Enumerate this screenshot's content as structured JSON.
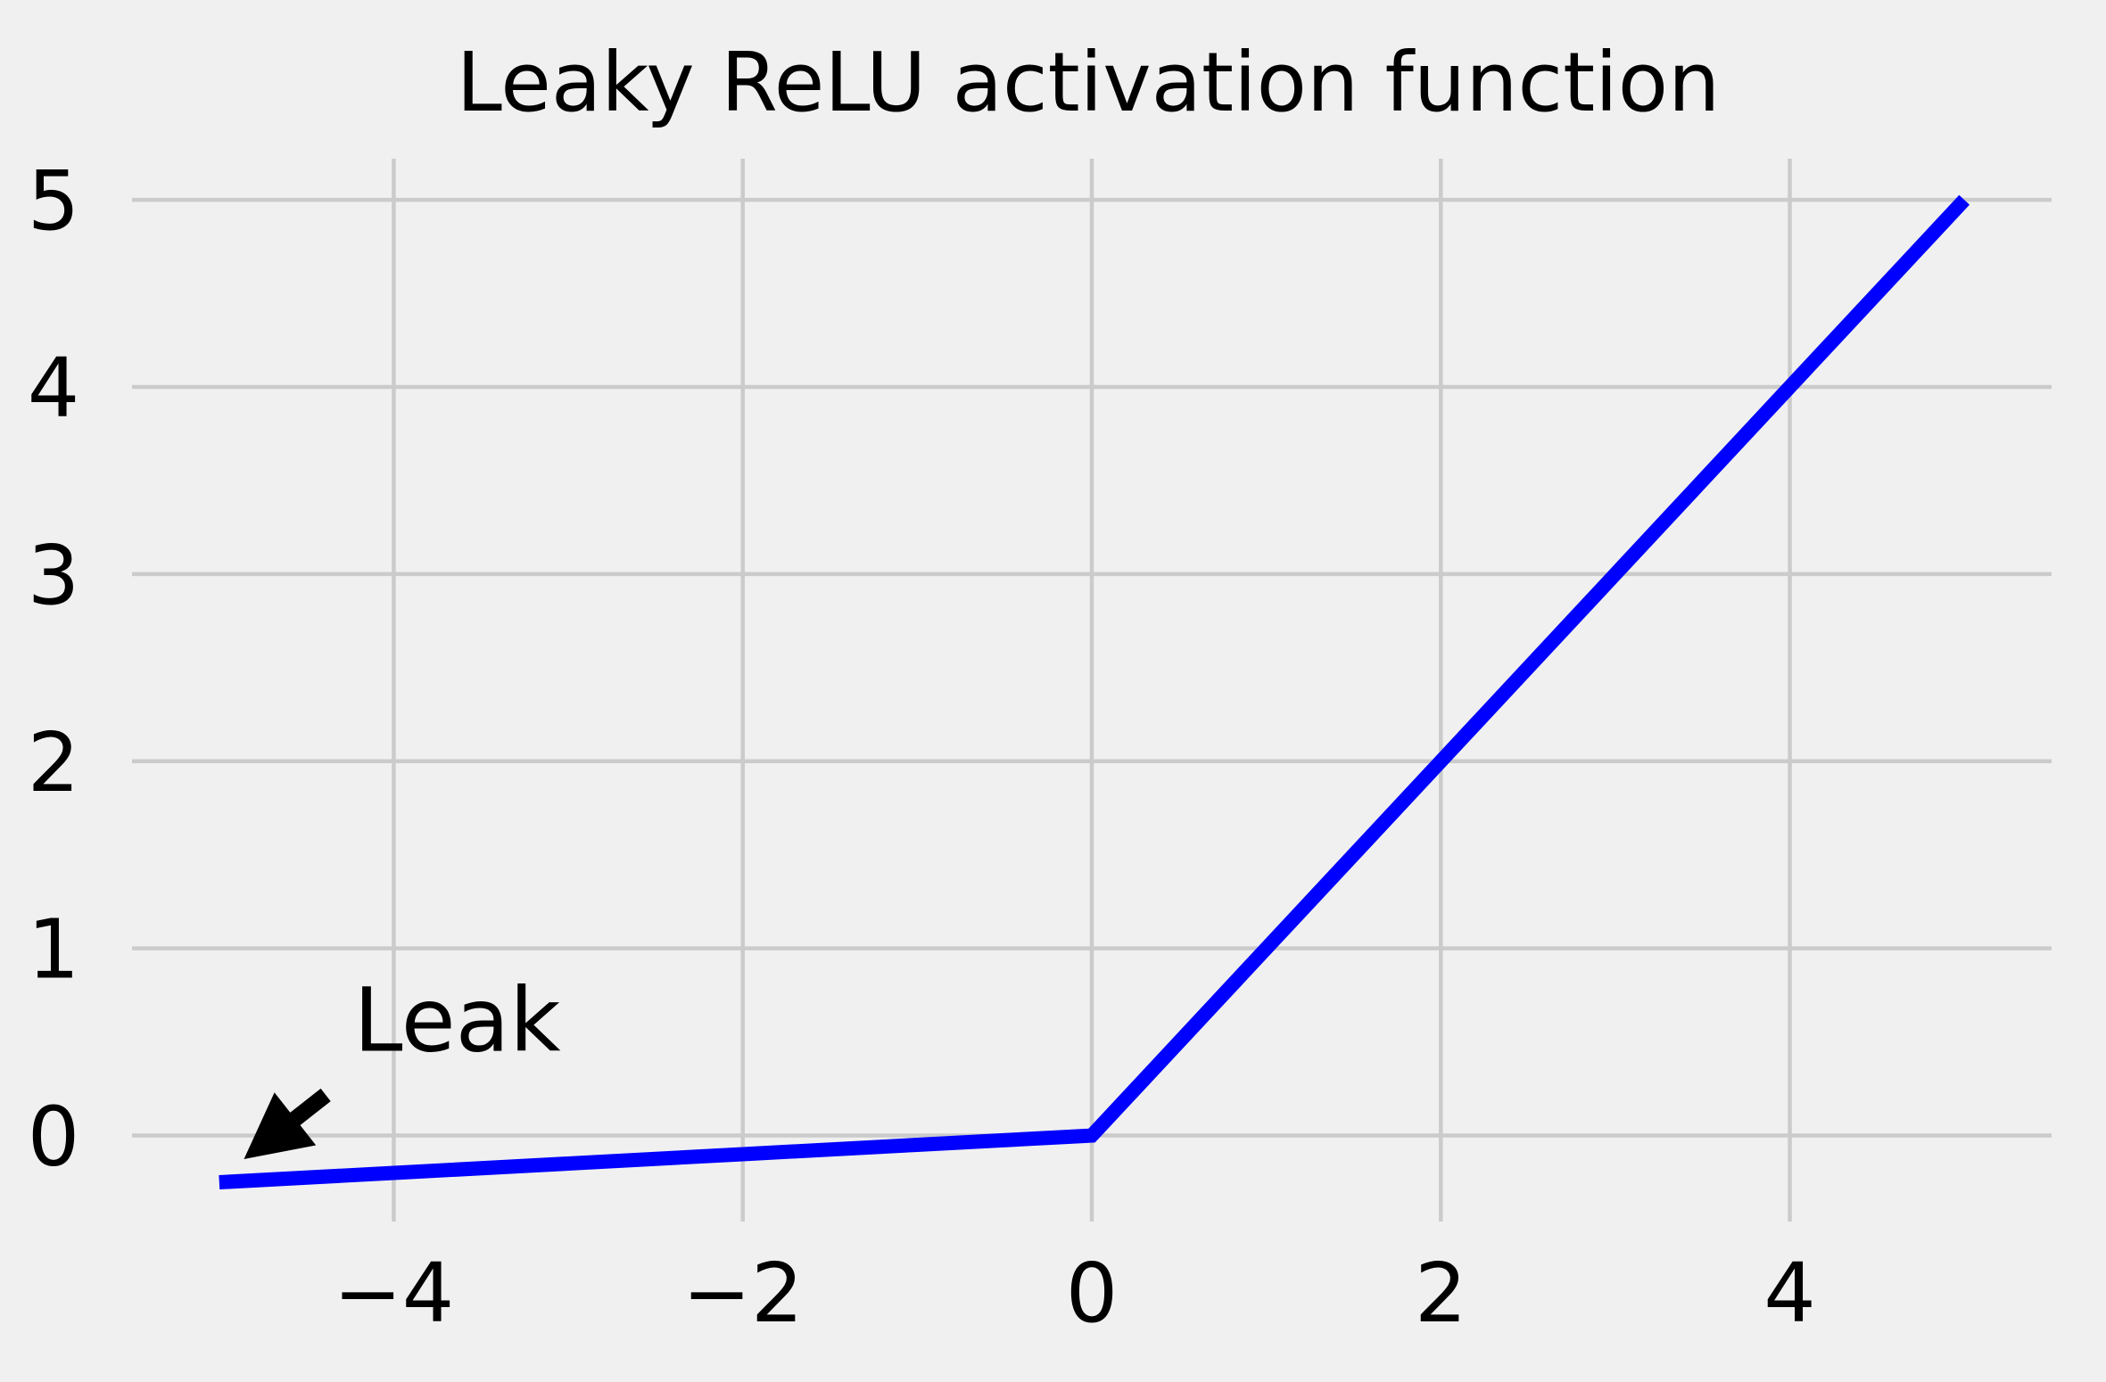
{
  "chart_data": {
    "type": "line",
    "title": "Leaky ReLU activation function",
    "xlabel": "",
    "ylabel": "",
    "xlim": [
      -5.5,
      5.5
    ],
    "ylim": [
      -0.45,
      5.22
    ],
    "grid": true,
    "legend": "none",
    "x_ticks": [
      {
        "value": -4,
        "label": "−4"
      },
      {
        "value": -2,
        "label": "−2"
      },
      {
        "value": 0,
        "label": "0"
      },
      {
        "value": 2,
        "label": "2"
      },
      {
        "value": 4,
        "label": "4"
      }
    ],
    "y_ticks": [
      {
        "value": 0,
        "label": "0"
      },
      {
        "value": 1,
        "label": "1"
      },
      {
        "value": 2,
        "label": "2"
      },
      {
        "value": 3,
        "label": "3"
      },
      {
        "value": 4,
        "label": "4"
      },
      {
        "value": 5,
        "label": "5"
      }
    ],
    "series": [
      {
        "color": "#0000ff",
        "x": [
          -5,
          -4,
          -3,
          -2,
          -1,
          -0.05,
          0,
          1,
          2,
          3,
          4,
          5
        ],
        "values": [
          -0.25,
          -0.2,
          -0.15,
          -0.1,
          -0.05,
          -0.0025,
          0,
          1,
          2,
          3,
          4,
          5
        ]
      }
    ],
    "annotations": [
      {
        "text": "Leak",
        "text_xy": [
          -4.2,
          0.5
        ],
        "arrow_to": [
          -4.85,
          -0.12
        ]
      }
    ]
  },
  "colors": {
    "background": "#f0f0f0",
    "grid": "#cbcbcb",
    "line": "#0000ff",
    "text": "#000000"
  }
}
